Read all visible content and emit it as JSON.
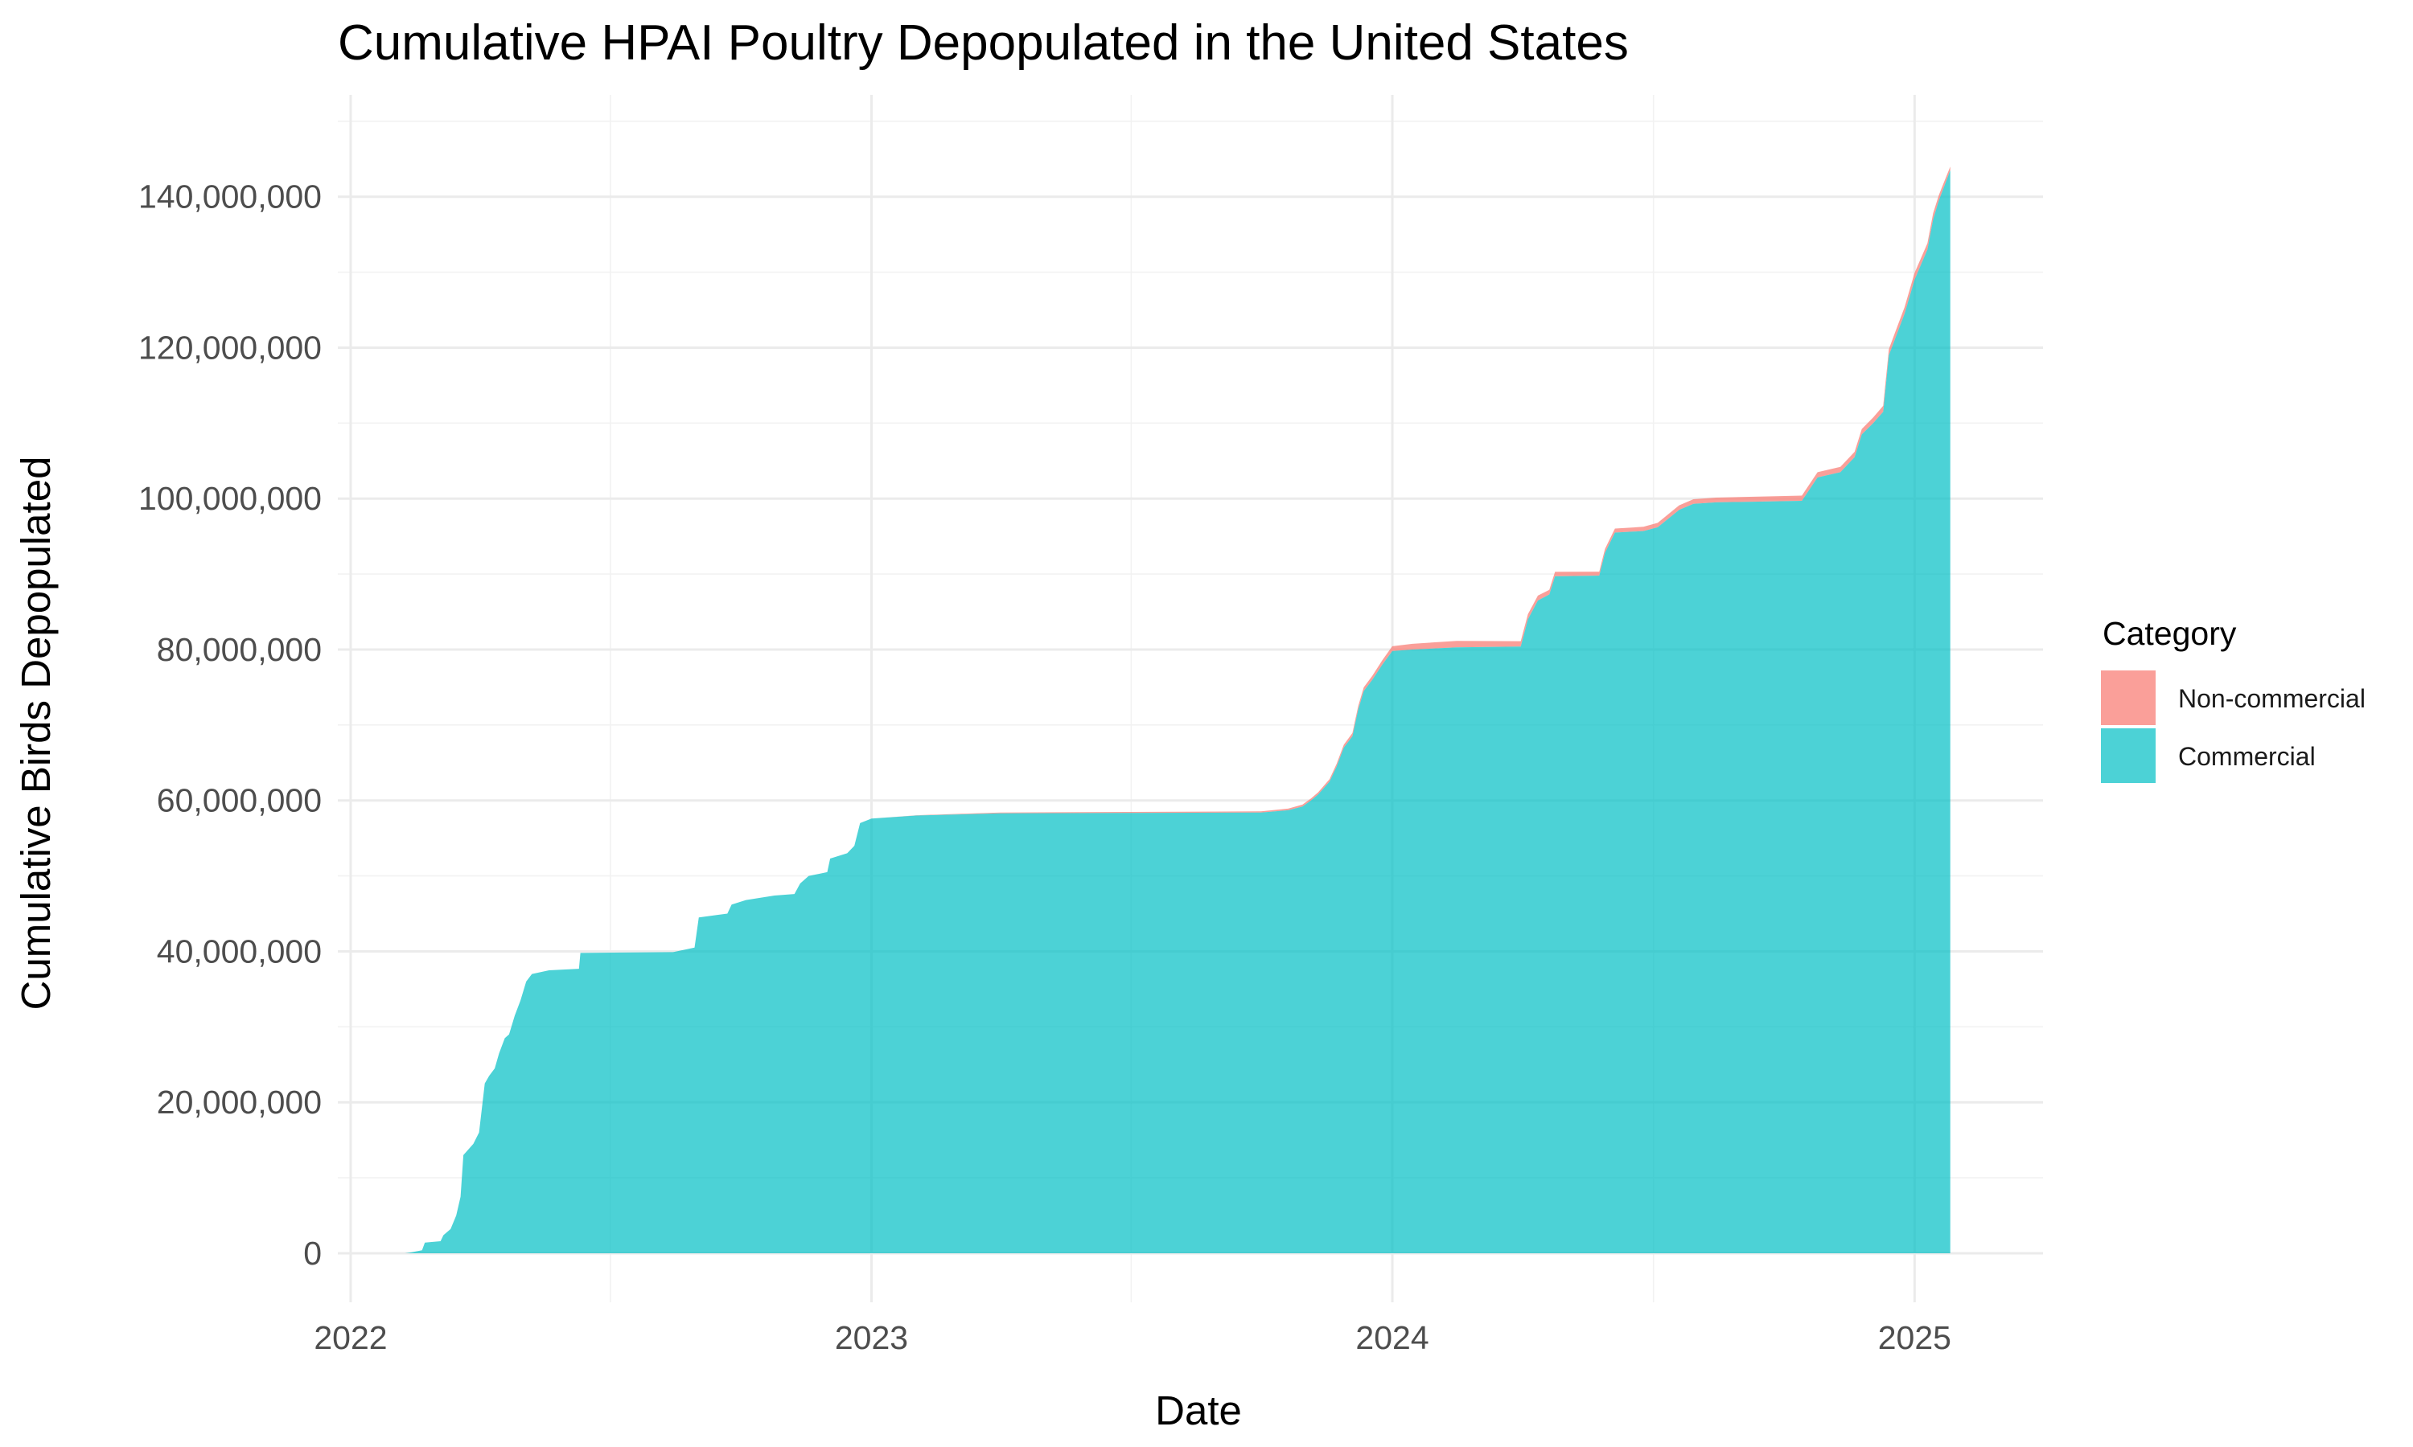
{
  "chart_data": {
    "type": "area",
    "title": "Cumulative HPAI Poultry Depopulated in the United States",
    "xlabel": "Date",
    "ylabel": "Cumulative Birds Depopulated",
    "x_ticks": [
      "2022",
      "2023",
      "2024",
      "2025"
    ],
    "y_ticks": [
      "0",
      "20,000,000",
      "40,000,000",
      "60,000,000",
      "80,000,000",
      "100,000,000",
      "120,000,000",
      "140,000,000"
    ],
    "y_tick_values": [
      0,
      20000000,
      40000000,
      60000000,
      80000000,
      100000000,
      120000000,
      140000000
    ],
    "xlim": [
      "2021-12-23",
      "2025-04-01"
    ],
    "ylim": [
      -6500000,
      153500000
    ],
    "stacked": true,
    "grid": true,
    "legend_position": "right",
    "legend_title": "Category",
    "series": [
      {
        "name": "Non-commercial",
        "color": "#F8766D",
        "points": [
          [
            "2022-02-08",
            0
          ],
          [
            "2022-02-25",
            0
          ],
          [
            "2022-03-20",
            0
          ],
          [
            "2022-04-20",
            0
          ],
          [
            "2022-06-01",
            0
          ],
          [
            "2022-09-01",
            0
          ],
          [
            "2022-12-01",
            0
          ],
          [
            "2022-12-31",
            0
          ],
          [
            "2023-04-01",
            100000
          ],
          [
            "2023-10-01",
            150000
          ],
          [
            "2023-11-15",
            300000
          ],
          [
            "2023-12-28",
            600000
          ],
          [
            "2024-02-01",
            900000
          ],
          [
            "2024-04-01",
            700000
          ],
          [
            "2024-05-15",
            500000
          ],
          [
            "2024-07-15",
            600000
          ],
          [
            "2024-10-15",
            700000
          ],
          [
            "2024-11-20",
            700000
          ],
          [
            "2025-01-01",
            900000
          ],
          [
            "2025-01-15",
            800000
          ],
          [
            "2025-01-26",
            500000
          ]
        ]
      },
      {
        "name": "Commercial",
        "color": "#00BFC4",
        "points": [
          [
            "2022-02-08",
            0
          ],
          [
            "2022-02-12",
            100000
          ],
          [
            "2022-02-20",
            400000
          ],
          [
            "2022-02-22",
            1400000
          ],
          [
            "2022-03-05",
            1600000
          ],
          [
            "2022-03-07",
            2400000
          ],
          [
            "2022-03-12",
            3200000
          ],
          [
            "2022-03-16",
            5000000
          ],
          [
            "2022-03-19",
            7500000
          ],
          [
            "2022-03-21",
            13000000
          ],
          [
            "2022-03-28",
            14500000
          ],
          [
            "2022-04-01",
            16000000
          ],
          [
            "2022-04-05",
            22500000
          ],
          [
            "2022-04-08",
            23500000
          ],
          [
            "2022-04-12",
            24500000
          ],
          [
            "2022-04-15",
            26500000
          ],
          [
            "2022-04-19",
            28500000
          ],
          [
            "2022-04-22",
            29000000
          ],
          [
            "2022-04-26",
            31500000
          ],
          [
            "2022-04-30",
            33500000
          ],
          [
            "2022-05-04",
            36000000
          ],
          [
            "2022-05-08",
            37000000
          ],
          [
            "2022-05-20",
            37500000
          ],
          [
            "2022-06-10",
            37700000
          ],
          [
            "2022-06-11",
            39800000
          ],
          [
            "2022-08-15",
            39900000
          ],
          [
            "2022-08-30",
            40500000
          ],
          [
            "2022-09-02",
            44500000
          ],
          [
            "2022-09-22",
            45000000
          ],
          [
            "2022-09-25",
            46200000
          ],
          [
            "2022-10-05",
            46800000
          ],
          [
            "2022-10-25",
            47400000
          ],
          [
            "2022-11-08",
            47600000
          ],
          [
            "2022-11-12",
            49000000
          ],
          [
            "2022-11-18",
            50000000
          ],
          [
            "2022-12-01",
            50500000
          ],
          [
            "2022-12-03",
            52300000
          ],
          [
            "2022-12-15",
            53000000
          ],
          [
            "2022-12-20",
            54000000
          ],
          [
            "2022-12-24",
            57000000
          ],
          [
            "2023-01-01",
            57600000
          ],
          [
            "2023-02-01",
            58000000
          ],
          [
            "2023-04-01",
            58300000
          ],
          [
            "2023-07-01",
            58350000
          ],
          [
            "2023-10-01",
            58400000
          ],
          [
            "2023-10-20",
            58700000
          ],
          [
            "2023-10-30",
            59200000
          ],
          [
            "2023-11-05",
            60000000
          ],
          [
            "2023-11-10",
            60800000
          ],
          [
            "2023-11-18",
            62500000
          ],
          [
            "2023-11-23",
            64500000
          ],
          [
            "2023-11-28",
            67000000
          ],
          [
            "2023-12-04",
            68500000
          ],
          [
            "2023-12-08",
            72000000
          ],
          [
            "2023-12-12",
            74500000
          ],
          [
            "2023-12-18",
            76000000
          ],
          [
            "2023-12-25",
            78000000
          ],
          [
            "2024-01-01",
            79800000
          ],
          [
            "2024-01-15",
            80000000
          ],
          [
            "2024-02-15",
            80300000
          ],
          [
            "2024-03-31",
            80400000
          ],
          [
            "2024-04-05",
            84000000
          ],
          [
            "2024-04-12",
            86500000
          ],
          [
            "2024-04-20",
            87300000
          ],
          [
            "2024-04-24",
            89700000
          ],
          [
            "2024-05-25",
            89800000
          ],
          [
            "2024-05-29",
            92800000
          ],
          [
            "2024-06-05",
            95500000
          ],
          [
            "2024-06-25",
            95700000
          ],
          [
            "2024-07-05",
            96200000
          ],
          [
            "2024-07-20",
            98500000
          ],
          [
            "2024-07-30",
            99300000
          ],
          [
            "2024-08-15",
            99500000
          ],
          [
            "2024-10-14",
            99700000
          ],
          [
            "2024-10-25",
            102800000
          ],
          [
            "2024-11-10",
            103500000
          ],
          [
            "2024-11-20",
            105500000
          ],
          [
            "2024-11-25",
            108500000
          ],
          [
            "2024-12-03",
            110000000
          ],
          [
            "2024-12-10",
            111500000
          ],
          [
            "2024-12-14",
            119000000
          ],
          [
            "2024-12-20",
            122000000
          ],
          [
            "2024-12-25",
            124500000
          ],
          [
            "2025-01-01",
            129000000
          ],
          [
            "2025-01-10",
            133000000
          ],
          [
            "2025-01-14",
            137000000
          ],
          [
            "2025-01-18",
            139500000
          ],
          [
            "2025-01-22",
            141500000
          ],
          [
            "2025-01-26",
            143500000
          ]
        ]
      }
    ]
  }
}
